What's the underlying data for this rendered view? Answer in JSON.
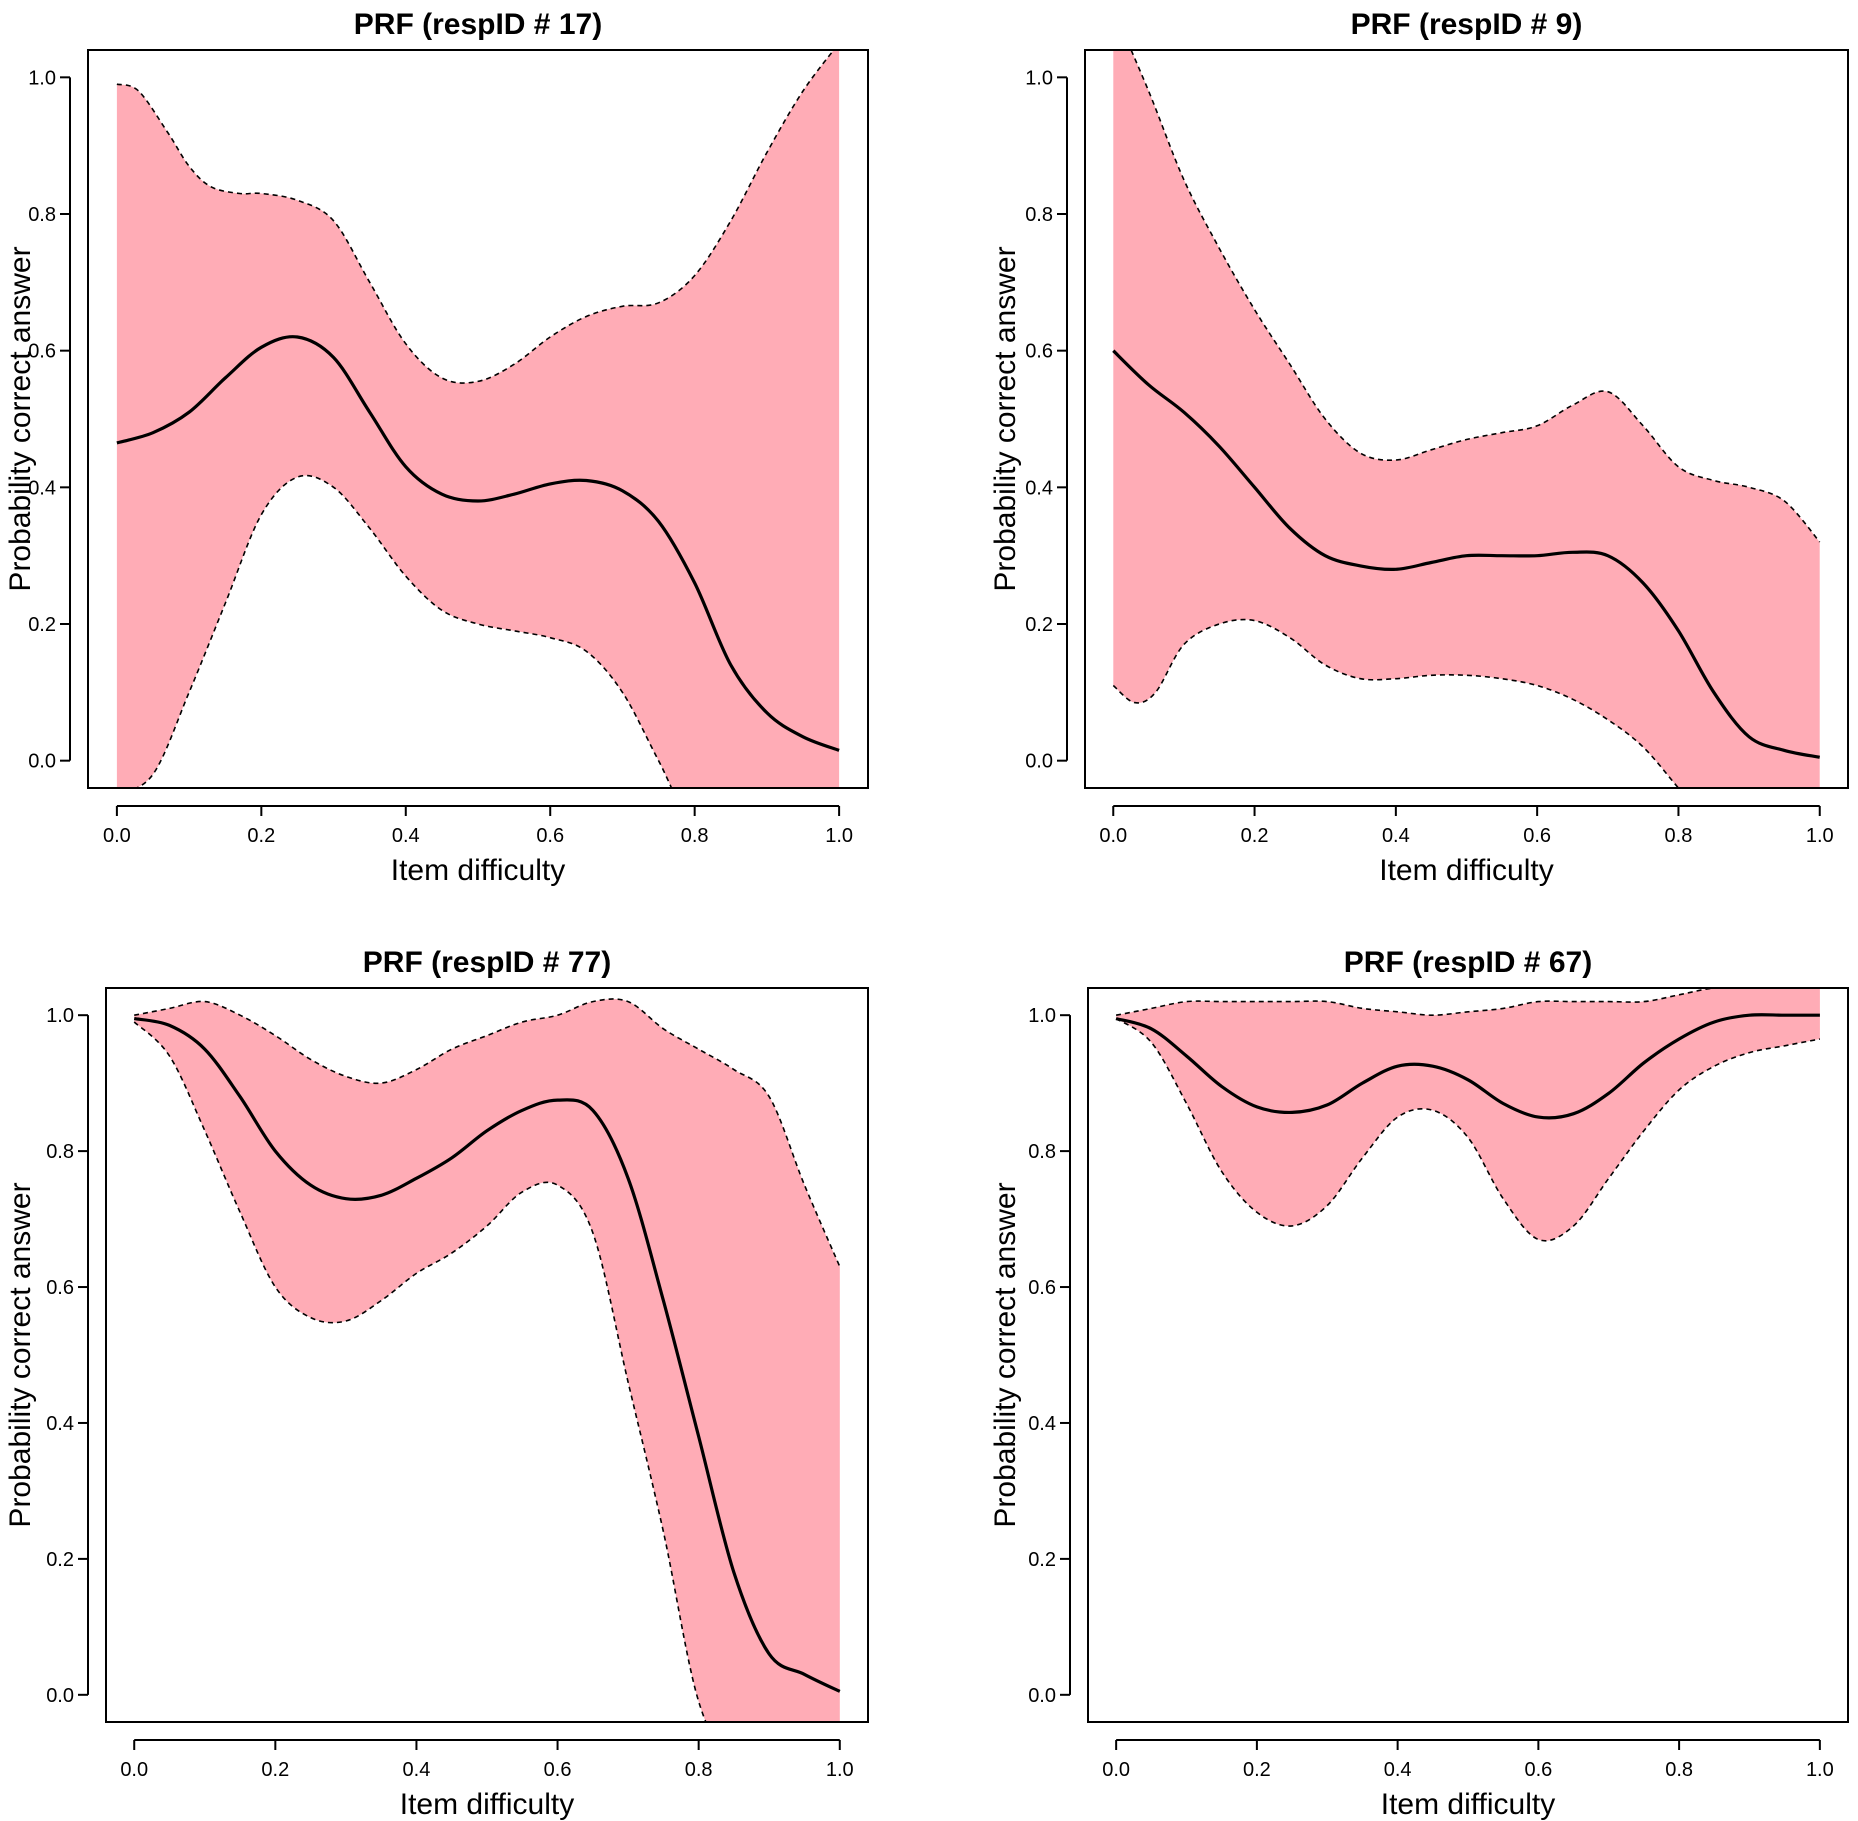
{
  "figure": {
    "band_color": "#ffacb6",
    "line_color": "#000000"
  },
  "chart_data": [
    {
      "type": "line",
      "title": "PRF (respID # 17)",
      "xlabel": "Item difficulty",
      "ylabel": "Probability correct answer",
      "xlim": [
        -0.04,
        1.04
      ],
      "ylim": [
        -0.04,
        1.04
      ],
      "x_ticks": [
        "0.0",
        "0.2",
        "0.4",
        "0.6",
        "0.8",
        "1.0"
      ],
      "y_ticks": [
        "0.0",
        "0.2",
        "0.4",
        "0.6",
        "0.8",
        "1.0"
      ],
      "series": [
        {
          "name": "estimate",
          "x": [
            0.0,
            0.05,
            0.1,
            0.15,
            0.2,
            0.25,
            0.3,
            0.35,
            0.4,
            0.45,
            0.5,
            0.55,
            0.6,
            0.65,
            0.7,
            0.75,
            0.8,
            0.85,
            0.9,
            0.95,
            1.0
          ],
          "values": [
            0.465,
            0.48,
            0.51,
            0.56,
            0.605,
            0.62,
            0.59,
            0.51,
            0.43,
            0.39,
            0.38,
            0.39,
            0.405,
            0.41,
            0.395,
            0.35,
            0.26,
            0.14,
            0.07,
            0.035,
            0.015
          ]
        },
        {
          "name": "upper bound",
          "x": [
            0.0,
            0.03,
            0.07,
            0.1,
            0.13,
            0.17,
            0.2,
            0.25,
            0.3,
            0.35,
            0.4,
            0.45,
            0.5,
            0.55,
            0.6,
            0.65,
            0.7,
            0.75,
            0.8,
            0.85,
            0.9,
            0.95,
            1.0
          ],
          "values": [
            0.99,
            0.98,
            0.92,
            0.87,
            0.84,
            0.83,
            0.83,
            0.82,
            0.79,
            0.7,
            0.61,
            0.56,
            0.555,
            0.58,
            0.62,
            0.65,
            0.665,
            0.67,
            0.71,
            0.79,
            0.89,
            0.98,
            1.05
          ]
        },
        {
          "name": "lower bound",
          "x": [
            0.0,
            0.05,
            0.1,
            0.15,
            0.2,
            0.25,
            0.3,
            0.35,
            0.4,
            0.45,
            0.5,
            0.55,
            0.6,
            0.65,
            0.7,
            0.75,
            0.8,
            0.85,
            0.9,
            0.95,
            1.0
          ],
          "values": [
            -0.05,
            -0.02,
            0.1,
            0.23,
            0.36,
            0.415,
            0.4,
            0.34,
            0.27,
            0.22,
            0.2,
            0.19,
            0.18,
            0.16,
            0.1,
            0.0,
            -0.1,
            -0.1,
            -0.1,
            -0.1,
            -0.1
          ]
        }
      ]
    },
    {
      "type": "line",
      "title": "PRF (respID # 9)",
      "xlabel": "Item difficulty",
      "ylabel": "Probability correct answer",
      "xlim": [
        -0.04,
        1.04
      ],
      "ylim": [
        -0.04,
        1.04
      ],
      "x_ticks": [
        "0.0",
        "0.2",
        "0.4",
        "0.6",
        "0.8",
        "1.0"
      ],
      "y_ticks": [
        "0.0",
        "0.2",
        "0.4",
        "0.6",
        "0.8",
        "1.0"
      ],
      "series": [
        {
          "name": "estimate",
          "x": [
            0.0,
            0.05,
            0.1,
            0.15,
            0.2,
            0.25,
            0.3,
            0.35,
            0.4,
            0.45,
            0.5,
            0.55,
            0.6,
            0.65,
            0.7,
            0.75,
            0.8,
            0.85,
            0.9,
            0.95,
            1.0
          ],
          "values": [
            0.6,
            0.55,
            0.51,
            0.46,
            0.4,
            0.34,
            0.3,
            0.285,
            0.28,
            0.29,
            0.3,
            0.3,
            0.3,
            0.305,
            0.3,
            0.26,
            0.19,
            0.1,
            0.035,
            0.015,
            0.005
          ]
        },
        {
          "name": "upper bound",
          "x": [
            0.0,
            0.05,
            0.1,
            0.15,
            0.2,
            0.25,
            0.3,
            0.35,
            0.4,
            0.45,
            0.5,
            0.55,
            0.6,
            0.65,
            0.7,
            0.75,
            0.8,
            0.85,
            0.9,
            0.95,
            1.0
          ],
          "values": [
            1.1,
            0.98,
            0.85,
            0.75,
            0.66,
            0.58,
            0.5,
            0.45,
            0.44,
            0.455,
            0.47,
            0.48,
            0.49,
            0.52,
            0.54,
            0.49,
            0.43,
            0.41,
            0.4,
            0.38,
            0.32
          ]
        },
        {
          "name": "lower bound",
          "x": [
            0.0,
            0.03,
            0.06,
            0.1,
            0.15,
            0.2,
            0.25,
            0.3,
            0.35,
            0.4,
            0.45,
            0.5,
            0.55,
            0.6,
            0.65,
            0.7,
            0.75,
            0.8,
            0.85,
            0.9,
            0.95,
            1.0
          ],
          "values": [
            0.11,
            0.085,
            0.1,
            0.17,
            0.2,
            0.205,
            0.18,
            0.14,
            0.12,
            0.12,
            0.125,
            0.125,
            0.12,
            0.11,
            0.09,
            0.06,
            0.02,
            -0.04,
            -0.1,
            -0.1,
            -0.1,
            -0.1
          ]
        }
      ]
    },
    {
      "type": "line",
      "title": "PRF (respID # 77)",
      "xlabel": "Item difficulty",
      "ylabel": "Probability correct answer",
      "xlim": [
        -0.04,
        1.04
      ],
      "ylim": [
        -0.04,
        1.04
      ],
      "x_ticks": [
        "0.0",
        "0.2",
        "0.4",
        "0.6",
        "0.8",
        "1.0"
      ],
      "y_ticks": [
        "0.0",
        "0.2",
        "0.4",
        "0.6",
        "0.8",
        "1.0"
      ],
      "series": [
        {
          "name": "estimate",
          "x": [
            0.0,
            0.05,
            0.1,
            0.15,
            0.2,
            0.25,
            0.3,
            0.35,
            0.4,
            0.45,
            0.5,
            0.55,
            0.6,
            0.65,
            0.7,
            0.75,
            0.8,
            0.85,
            0.9,
            0.95,
            1.0
          ],
          "values": [
            0.995,
            0.985,
            0.95,
            0.88,
            0.8,
            0.75,
            0.73,
            0.735,
            0.76,
            0.79,
            0.83,
            0.86,
            0.875,
            0.86,
            0.76,
            0.58,
            0.38,
            0.18,
            0.06,
            0.03,
            0.005
          ]
        },
        {
          "name": "upper bound",
          "x": [
            0.0,
            0.05,
            0.1,
            0.15,
            0.2,
            0.25,
            0.3,
            0.35,
            0.4,
            0.45,
            0.5,
            0.55,
            0.6,
            0.65,
            0.7,
            0.75,
            0.8,
            0.85,
            0.9,
            0.95,
            1.0
          ],
          "values": [
            1.0,
            1.01,
            1.02,
            1.0,
            0.97,
            0.935,
            0.91,
            0.9,
            0.92,
            0.95,
            0.97,
            0.99,
            1.0,
            1.02,
            1.02,
            0.98,
            0.95,
            0.92,
            0.88,
            0.75,
            0.63
          ]
        },
        {
          "name": "lower bound",
          "x": [
            0.0,
            0.05,
            0.1,
            0.15,
            0.2,
            0.25,
            0.3,
            0.35,
            0.4,
            0.45,
            0.5,
            0.55,
            0.6,
            0.65,
            0.7,
            0.75,
            0.8,
            0.85,
            0.9,
            0.95,
            1.0
          ],
          "values": [
            0.99,
            0.94,
            0.83,
            0.71,
            0.6,
            0.555,
            0.55,
            0.58,
            0.62,
            0.65,
            0.69,
            0.74,
            0.75,
            0.68,
            0.46,
            0.24,
            -0.01,
            -0.1,
            -0.1,
            -0.1,
            -0.1
          ]
        }
      ]
    },
    {
      "type": "line",
      "title": "PRF (respID # 67)",
      "xlabel": "Item difficulty",
      "ylabel": "Probability correct answer",
      "xlim": [
        -0.04,
        1.04
      ],
      "ylim": [
        -0.04,
        1.04
      ],
      "x_ticks": [
        "0.0",
        "0.2",
        "0.4",
        "0.6",
        "0.8",
        "1.0"
      ],
      "y_ticks": [
        "0.0",
        "0.2",
        "0.4",
        "0.6",
        "0.8",
        "1.0"
      ],
      "series": [
        {
          "name": "estimate",
          "x": [
            0.0,
            0.05,
            0.1,
            0.15,
            0.2,
            0.25,
            0.3,
            0.35,
            0.4,
            0.45,
            0.5,
            0.55,
            0.6,
            0.65,
            0.7,
            0.75,
            0.8,
            0.85,
            0.9,
            0.95,
            1.0
          ],
          "values": [
            0.995,
            0.98,
            0.94,
            0.895,
            0.865,
            0.857,
            0.868,
            0.9,
            0.925,
            0.925,
            0.905,
            0.87,
            0.85,
            0.855,
            0.885,
            0.93,
            0.965,
            0.99,
            1.0,
            1.0,
            1.0
          ]
        },
        {
          "name": "upper bound",
          "x": [
            0.0,
            0.05,
            0.1,
            0.15,
            0.2,
            0.25,
            0.3,
            0.35,
            0.4,
            0.45,
            0.5,
            0.55,
            0.6,
            0.65,
            0.7,
            0.75,
            0.8,
            0.85,
            0.9,
            0.95,
            1.0
          ],
          "values": [
            1.0,
            1.01,
            1.02,
            1.02,
            1.02,
            1.02,
            1.02,
            1.01,
            1.005,
            1.0,
            1.005,
            1.01,
            1.02,
            1.02,
            1.02,
            1.02,
            1.03,
            1.04,
            1.04,
            1.04,
            1.04
          ]
        },
        {
          "name": "lower bound",
          "x": [
            0.0,
            0.05,
            0.1,
            0.15,
            0.2,
            0.25,
            0.3,
            0.35,
            0.4,
            0.45,
            0.5,
            0.55,
            0.6,
            0.65,
            0.7,
            0.75,
            0.8,
            0.85,
            0.9,
            0.95,
            1.0
          ],
          "values": [
            0.995,
            0.96,
            0.87,
            0.77,
            0.71,
            0.69,
            0.72,
            0.79,
            0.85,
            0.86,
            0.82,
            0.73,
            0.67,
            0.69,
            0.76,
            0.83,
            0.89,
            0.925,
            0.945,
            0.955,
            0.965
          ]
        }
      ]
    }
  ]
}
